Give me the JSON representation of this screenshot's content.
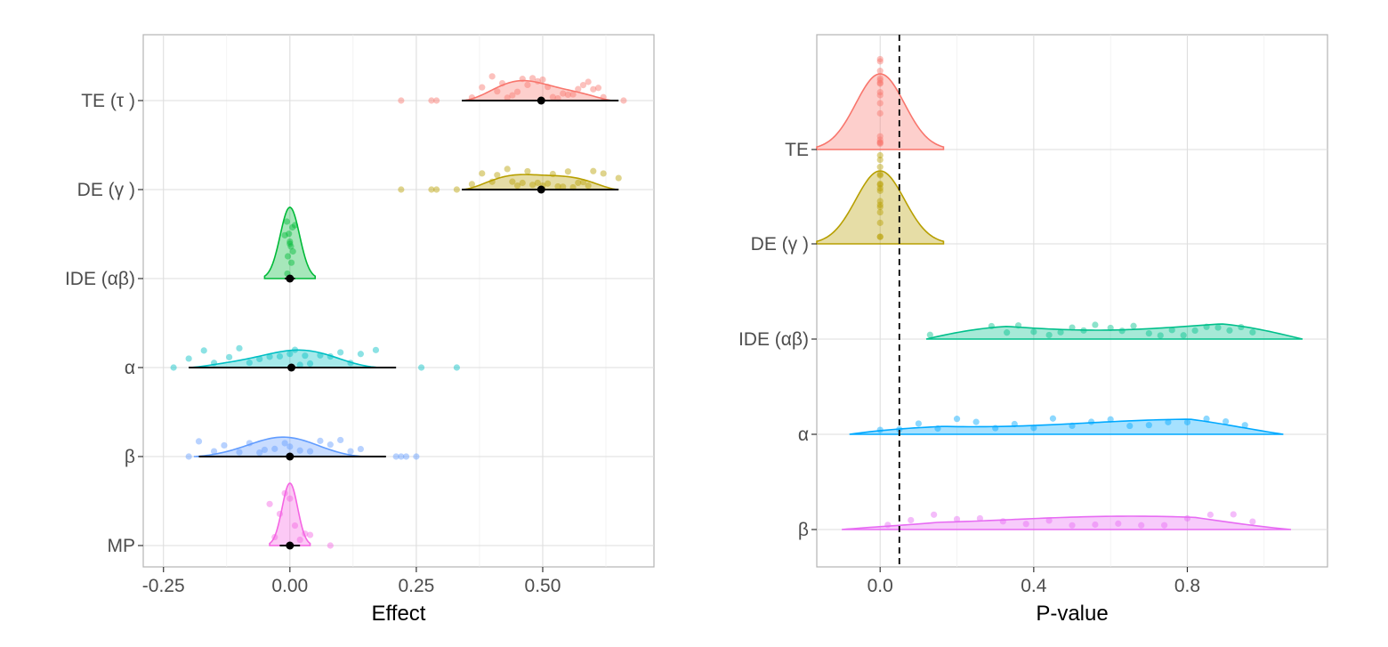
{
  "chart_data": [
    {
      "type": "raincloud",
      "xlabel": "Effect",
      "ylabel": "",
      "xlim": [
        -0.29,
        0.72
      ],
      "x_ticks": [
        -0.25,
        0.0,
        0.25,
        0.5
      ],
      "x_tick_labels": [
        "-0.25",
        "0.00",
        "0.25",
        "0.50"
      ],
      "grid": true,
      "legend": "none",
      "categories": [
        {
          "label": "TE (τ )",
          "color": "#F8766D",
          "density_range": [
            0.34,
            0.64
          ],
          "peak_density": 0.28,
          "summary": {
            "center": 0.497,
            "lower": 0.34,
            "upper": 0.65
          },
          "points": [
            0.22,
            0.28,
            0.29,
            0.36,
            0.38,
            0.4,
            0.41,
            0.42,
            0.43,
            0.44,
            0.45,
            0.46,
            0.47,
            0.48,
            0.49,
            0.5,
            0.51,
            0.52,
            0.53,
            0.54,
            0.55,
            0.56,
            0.57,
            0.58,
            0.59,
            0.6,
            0.61,
            0.62,
            0.66
          ]
        },
        {
          "label": "DE (γ )",
          "color": "#B79F00",
          "density_range": [
            0.34,
            0.65
          ],
          "peak_density": 0.27,
          "summary": {
            "center": 0.497,
            "lower": 0.34,
            "upper": 0.65
          },
          "points": [
            0.22,
            0.28,
            0.29,
            0.33,
            0.36,
            0.38,
            0.4,
            0.41,
            0.43,
            0.44,
            0.45,
            0.46,
            0.47,
            0.48,
            0.49,
            0.5,
            0.51,
            0.52,
            0.53,
            0.54,
            0.55,
            0.56,
            0.57,
            0.58,
            0.59,
            0.6,
            0.62,
            0.65
          ]
        },
        {
          "label": "IDE (αβ)",
          "color": "#00BA38",
          "density_range": [
            -0.05,
            0.05
          ],
          "peak_density": 0.8,
          "summary": {
            "center": 0.0,
            "lower": -0.01,
            "upper": 0.01
          },
          "points": [
            -0.01,
            -0.005,
            0.0,
            0.005,
            0.01,
            -0.004,
            0.003,
            0.002,
            -0.002,
            0.006,
            -0.006,
            0.0
          ]
        },
        {
          "label": "α",
          "color": "#00BFC4",
          "density_range": [
            -0.2,
            0.18
          ],
          "peak_density": 0.22,
          "summary": {
            "center": 0.003,
            "lower": -0.2,
            "upper": 0.21
          },
          "points": [
            -0.23,
            -0.2,
            -0.17,
            -0.15,
            -0.12,
            -0.1,
            -0.08,
            -0.06,
            -0.04,
            -0.02,
            0.0,
            0.01,
            0.02,
            0.03,
            0.04,
            0.06,
            0.08,
            0.1,
            0.12,
            0.14,
            0.17,
            0.26,
            0.33
          ]
        },
        {
          "label": "β",
          "color": "#619CFF",
          "density_range": [
            -0.19,
            0.15
          ],
          "peak_density": 0.22,
          "summary": {
            "center": 0.0,
            "lower": -0.18,
            "upper": 0.19
          },
          "points": [
            -0.2,
            -0.18,
            -0.15,
            -0.13,
            -0.1,
            -0.08,
            -0.06,
            -0.05,
            -0.03,
            -0.01,
            0.0,
            0.02,
            0.04,
            0.06,
            0.08,
            0.1,
            0.12,
            0.14,
            0.21,
            0.22,
            0.23,
            0.25
          ]
        },
        {
          "label": "MP",
          "color": "#F564E3",
          "density_range": [
            -0.04,
            0.04
          ],
          "peak_density": 0.7,
          "summary": {
            "center": 0.0,
            "lower": -0.02,
            "upper": 0.02
          },
          "points": [
            -0.04,
            -0.03,
            -0.02,
            -0.01,
            0.0,
            0.01,
            0.02,
            0.03,
            0.04,
            0.08
          ]
        }
      ]
    },
    {
      "type": "raincloud",
      "xlabel": "P-value",
      "ylabel": "",
      "xlim": [
        -0.165,
        1.165
      ],
      "x_ticks": [
        0.0,
        0.4,
        0.8
      ],
      "x_tick_labels": [
        "0.0",
        "0.4",
        "0.8"
      ],
      "reference_line": 0.05,
      "grid": true,
      "legend": "none",
      "categories": [
        {
          "label": "TE",
          "color": "#F8766D",
          "density_range": [
            -0.165,
            0.165
          ],
          "peak_density": 0.85,
          "points": [
            0.0,
            0.0,
            0.0,
            0.0,
            0.0,
            0.0,
            0.0,
            0.0,
            0.0,
            0.0,
            0.0,
            0.0,
            0.0,
            0.0,
            0.0,
            0.0
          ]
        },
        {
          "label": "DE (γ )",
          "color": "#B79F00",
          "density_range": [
            -0.165,
            0.165
          ],
          "peak_density": 0.82,
          "points": [
            0.0,
            0.0,
            0.0,
            0.0,
            0.0,
            0.0,
            0.0,
            0.0,
            0.0,
            0.0,
            0.0,
            0.0,
            0.0,
            0.0,
            0.0,
            0.0
          ]
        },
        {
          "label": "IDE (αβ)",
          "color": "#00C08B",
          "density_range": [
            0.12,
            1.1
          ],
          "peak_density": 0.2,
          "points": [
            0.13,
            0.29,
            0.33,
            0.36,
            0.4,
            0.44,
            0.47,
            0.5,
            0.53,
            0.56,
            0.6,
            0.63,
            0.66,
            0.7,
            0.73,
            0.76,
            0.79,
            0.82,
            0.85,
            0.88,
            0.91,
            0.94,
            0.97
          ]
        },
        {
          "label": "α",
          "color": "#00A9FF",
          "density_range": [
            -0.08,
            1.05
          ],
          "peak_density": 0.17,
          "points": [
            0.0,
            0.05,
            0.1,
            0.15,
            0.2,
            0.25,
            0.3,
            0.35,
            0.4,
            0.45,
            0.5,
            0.55,
            0.6,
            0.65,
            0.7,
            0.75,
            0.8,
            0.85,
            0.9,
            0.95
          ]
        },
        {
          "label": "β",
          "color": "#E76BF3",
          "density_range": [
            -0.1,
            1.07
          ],
          "peak_density": 0.15,
          "points": [
            0.02,
            0.08,
            0.14,
            0.2,
            0.26,
            0.32,
            0.38,
            0.44,
            0.5,
            0.56,
            0.62,
            0.68,
            0.74,
            0.8,
            0.86,
            0.92,
            0.97
          ]
        }
      ]
    }
  ]
}
